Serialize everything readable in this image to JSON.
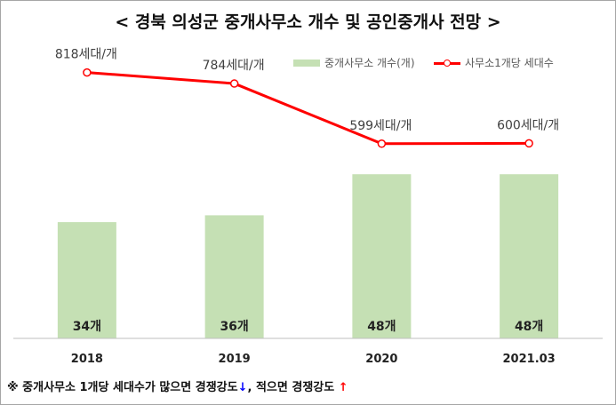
{
  "title": "< 경북 의성군 중개사무소 개수 및 공인중개사 전망 >",
  "legend": {
    "bar_label": "중개사무소 개수(개)",
    "line_label": "사무소1개당 세대수"
  },
  "colors": {
    "bar": "#c5e0b4",
    "line": "#ff0000",
    "gridline": "#d9d9d9",
    "axis": "#bfbfbf"
  },
  "chart_data": {
    "type": "bar",
    "categories": [
      "2018",
      "2019",
      "2020",
      "2021.03"
    ],
    "series": [
      {
        "name": "중개사무소 개수(개)",
        "type": "bar",
        "values": [
          34,
          36,
          48,
          48
        ],
        "labels": [
          "34개",
          "36개",
          "48개",
          "48개"
        ]
      },
      {
        "name": "사무소1개당 세대수",
        "type": "line",
        "values": [
          818,
          784,
          599,
          600
        ],
        "labels": [
          "818세대/개",
          "784세대/개",
          "599세대/개",
          "600세대/개"
        ]
      }
    ],
    "bar_axis_range": [
      0,
      60
    ],
    "line_axis_range": [
      0,
      1000
    ],
    "grid": false,
    "legend_position": "top-right"
  },
  "footnote": {
    "text1": "※ 중개사무소 1개당 세대수가 많으면 경쟁강도",
    "arrow1": "↓",
    "text2": ", 적으면 경쟁강도",
    "arrow2": "↑"
  }
}
